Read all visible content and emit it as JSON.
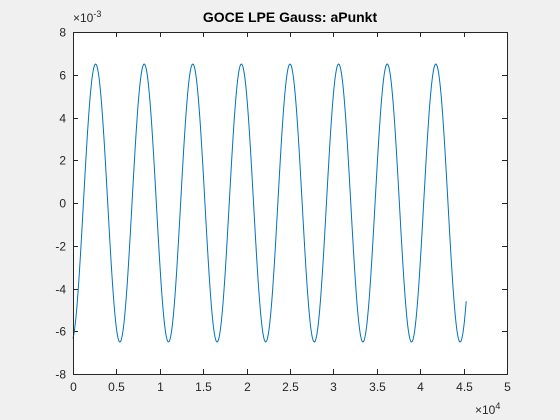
{
  "window": {
    "background": "#f0f0f0"
  },
  "chart_data": {
    "type": "line",
    "title": "GOCE LPE Gauss: aPunkt",
    "xlabel": "",
    "ylabel": "",
    "xlim": [
      0,
      50000
    ],
    "ylim": [
      -0.008,
      0.008
    ],
    "x_ticks": [
      0,
      5000,
      10000,
      15000,
      20000,
      25000,
      30000,
      35000,
      40000,
      45000,
      50000
    ],
    "x_tick_labels": [
      "0",
      "0.5",
      "1",
      "1.5",
      "2",
      "2.5",
      "3",
      "3.5",
      "4",
      "4.5",
      "5"
    ],
    "y_ticks": [
      -0.008,
      -0.006,
      -0.004,
      -0.002,
      0,
      0.002,
      0.004,
      0.006,
      0.008
    ],
    "y_tick_labels": [
      "-8",
      "-6",
      "-4",
      "-2",
      "0",
      "2",
      "4",
      "6",
      "8"
    ],
    "x_exponent": {
      "base": "×10",
      "power": "4"
    },
    "y_exponent": {
      "base": "×10",
      "power": "-3"
    },
    "grid": false,
    "axes_color": "#262626",
    "plot_background": "#ffffff",
    "series": [
      {
        "color": "#0072bd",
        "amplitude": 0.0065,
        "period": 5600,
        "x_start": 0,
        "x_end": 45300,
        "y_start": -0.0065,
        "peaks_x": [
          2600,
          8200,
          13800,
          19400,
          25000,
          30600,
          36200,
          41800
        ],
        "troughs_x": [
          5400,
          11000,
          16600,
          22200,
          27800,
          33400,
          39000,
          44600
        ]
      }
    ]
  }
}
